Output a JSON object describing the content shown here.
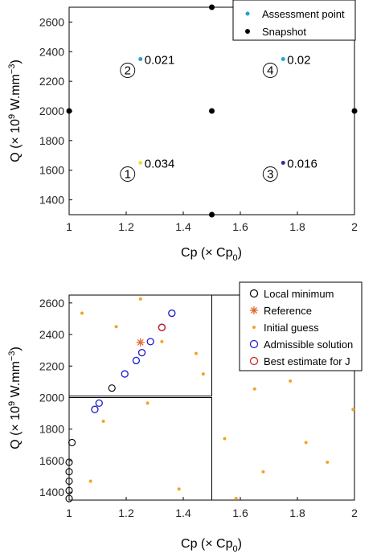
{
  "chart_data": [
    {
      "type": "scatter",
      "xlabel_main": "Cp (× Cp",
      "xlabel_sub": "0",
      "xlabel_tail": ")",
      "ylabel_main": "Q (× 10",
      "ylabel_sup": "9",
      "ylabel_tail": " W.mm",
      "ylabel_sup2": "−3",
      "ylabel_end": ")",
      "xlim": [
        1,
        2
      ],
      "ylim": [
        1300,
        2700
      ],
      "x_ticks": [
        "1",
        "1.2",
        "1.4",
        "1.6",
        "1.8",
        "2"
      ],
      "y_ticks": [
        "1400",
        "1600",
        "1800",
        "2000",
        "2200",
        "2400",
        "2600"
      ],
      "legend": {
        "placement": "top-right",
        "entries": [
          {
            "label": "Assessment point",
            "color": "#1fa3c9",
            "marker": "dot"
          },
          {
            "label": "Snapshot",
            "color": "#000000",
            "marker": "dot"
          }
        ]
      },
      "snapshots": [
        {
          "x": 1.0,
          "y": 2000
        },
        {
          "x": 1.5,
          "y": 2700
        },
        {
          "x": 1.5,
          "y": 2000
        },
        {
          "x": 1.5,
          "y": 1300
        },
        {
          "x": 2.0,
          "y": 2000
        }
      ],
      "assessment_points": [
        {
          "id": "1",
          "x": 1.25,
          "y": 1650,
          "value": "0.034",
          "color": "#e8e33c"
        },
        {
          "id": "2",
          "x": 1.25,
          "y": 2350,
          "value": "0.021",
          "color": "#2a9fd0"
        },
        {
          "id": "3",
          "x": 1.75,
          "y": 1650,
          "value": "0.016",
          "color": "#3b2a8f"
        },
        {
          "id": "4",
          "x": 1.75,
          "y": 2350,
          "value": "0.02",
          "color": "#1faad4"
        }
      ]
    },
    {
      "type": "scatter",
      "xlabel_main": "Cp (× Cp",
      "xlabel_sub": "0",
      "xlabel_tail": ")",
      "ylabel_main": "Q (× 10",
      "ylabel_sup": "9",
      "ylabel_tail": " W.mm",
      "ylabel_sup2": "−3",
      "ylabel_end": ")",
      "xlim": [
        1,
        2
      ],
      "ylim": [
        1350,
        2650
      ],
      "x_ticks": [
        "1",
        "1.2",
        "1.4",
        "1.6",
        "1.8",
        "2"
      ],
      "y_ticks": [
        "1400",
        "1600",
        "1800",
        "2000",
        "2200",
        "2400",
        "2600"
      ],
      "legend": {
        "placement": "top-right",
        "entries": [
          {
            "label": "Local minimum",
            "color": "#000000",
            "marker": "circle"
          },
          {
            "label": "Reference",
            "color": "#e06a2b",
            "marker": "asterisk"
          },
          {
            "label": "Initial guess",
            "color": "#f0a526",
            "marker": "dot"
          },
          {
            "label": "Admissible solution",
            "color": "#1a1acc",
            "marker": "circle"
          },
          {
            "label": "Best estimate for J",
            "color": "#d11a1a",
            "marker": "circle"
          }
        ]
      },
      "subdomains": [
        {
          "x": [
            1.0,
            1.5
          ],
          "y": [
            2010,
            2650
          ]
        },
        {
          "x": [
            1.0,
            1.5
          ],
          "y": [
            1350,
            2000
          ]
        }
      ],
      "local_minimum": [
        {
          "x": 1.0,
          "y": 1360
        },
        {
          "x": 1.0,
          "y": 1410
        },
        {
          "x": 1.0,
          "y": 1470
        },
        {
          "x": 1.0,
          "y": 1530
        },
        {
          "x": 1.0,
          "y": 1590
        },
        {
          "x": 1.01,
          "y": 1715
        },
        {
          "x": 1.15,
          "y": 2060
        }
      ],
      "reference": {
        "x": 1.25,
        "y": 2350
      },
      "initial_guess": [
        {
          "x": 1.045,
          "y": 2535
        },
        {
          "x": 1.165,
          "y": 2450
        },
        {
          "x": 1.25,
          "y": 2625
        },
        {
          "x": 1.325,
          "y": 2355
        },
        {
          "x": 1.445,
          "y": 2280
        },
        {
          "x": 1.47,
          "y": 2150
        },
        {
          "x": 1.275,
          "y": 1965
        },
        {
          "x": 1.12,
          "y": 1850
        },
        {
          "x": 1.075,
          "y": 1470
        },
        {
          "x": 1.385,
          "y": 1420
        },
        {
          "x": 1.545,
          "y": 1740
        },
        {
          "x": 1.585,
          "y": 1360
        },
        {
          "x": 1.65,
          "y": 2055
        },
        {
          "x": 1.68,
          "y": 1530
        },
        {
          "x": 1.775,
          "y": 2105
        },
        {
          "x": 1.83,
          "y": 1715
        },
        {
          "x": 1.905,
          "y": 1590
        },
        {
          "x": 1.995,
          "y": 1925
        }
      ],
      "admissible_solution": [
        {
          "x": 1.09,
          "y": 1925
        },
        {
          "x": 1.105,
          "y": 1965
        },
        {
          "x": 1.195,
          "y": 2150
        },
        {
          "x": 1.235,
          "y": 2235
        },
        {
          "x": 1.255,
          "y": 2285
        },
        {
          "x": 1.285,
          "y": 2355
        },
        {
          "x": 1.325,
          "y": 2445
        },
        {
          "x": 1.36,
          "y": 2535
        }
      ],
      "best_estimate": {
        "x": 1.325,
        "y": 2445
      }
    }
  ]
}
